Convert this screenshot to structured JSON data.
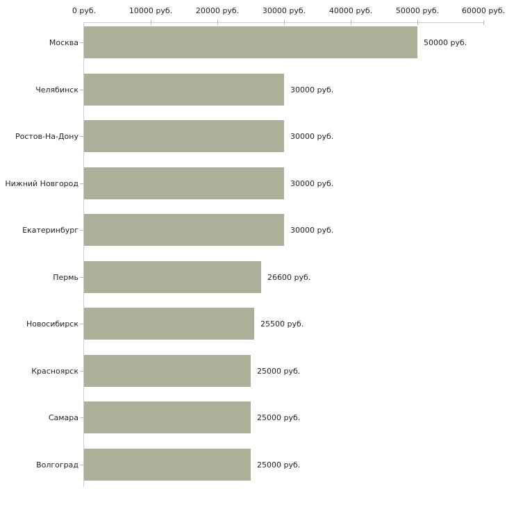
{
  "chart_data": {
    "type": "bar",
    "orientation": "horizontal",
    "title": "",
    "xlabel": "",
    "ylabel": "",
    "unit": "руб.",
    "xlim": [
      0,
      60000
    ],
    "x_ticks": [
      0,
      10000,
      20000,
      30000,
      40000,
      50000,
      60000
    ],
    "x_tick_labels": [
      "0 руб.",
      "10000 руб.",
      "20000 руб.",
      "30000 руб.",
      "40000 руб.",
      "50000 руб.",
      "60000 руб."
    ],
    "categories": [
      "Москва",
      "Челябинск",
      "Ростов-На-Дону",
      "Нижний Новгород",
      "Екатеринбург",
      "Пермь",
      "Новосибирск",
      "Красноярск",
      "Самара",
      "Волгоград"
    ],
    "values": [
      50000,
      30000,
      30000,
      30000,
      30000,
      26600,
      25500,
      25000,
      25000,
      25000
    ],
    "value_labels": [
      "50000 руб.",
      "30000 руб.",
      "30000 руб.",
      "30000 руб.",
      "30000 руб.",
      "26600 руб.",
      "25500 руб.",
      "25000 руб.",
      "25000 руб.",
      "25000 руб."
    ],
    "grid": false,
    "legend": false,
    "colors": {
      "bar": "#abb098",
      "axis": "#cccccc",
      "tick": "#b8bb90",
      "text": "#1f1f1f",
      "background": "#ffffff"
    }
  }
}
